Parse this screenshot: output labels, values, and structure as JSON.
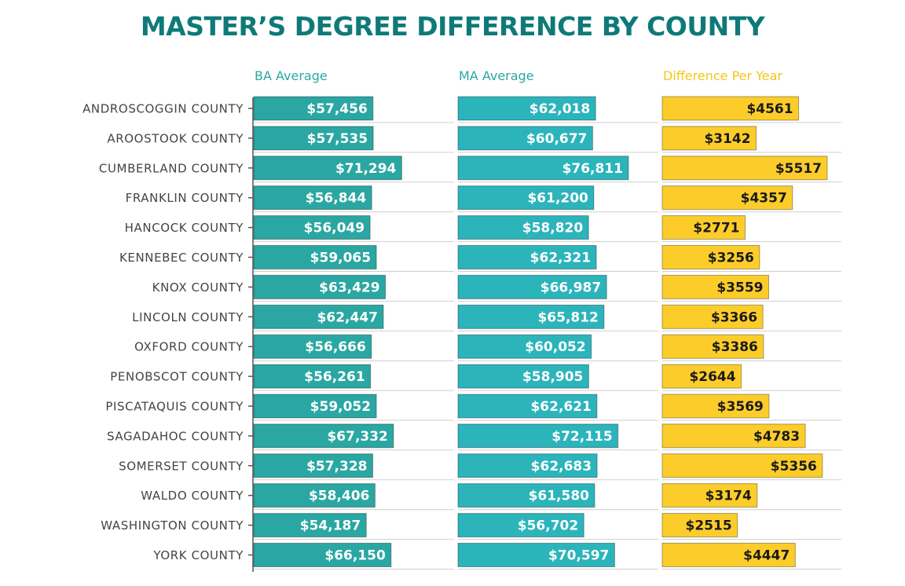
{
  "chart_data": {
    "type": "bar",
    "title": "MASTER’S DEGREE DIFFERENCE BY COUNTY",
    "categories": [
      "ANDROSCOGGIN COUNTY",
      "AROOSTOOK COUNTY",
      "CUMBERLAND COUNTY",
      "FRANKLIN COUNTY",
      "HANCOCK COUNTY",
      "KENNEBEC COUNTY",
      "KNOX COUNTY",
      "LINCOLN COUNTY",
      "OXFORD COUNTY",
      "PENOBSCOT COUNTY",
      "PISCATAQUIS COUNTY",
      "SAGADAHOC COUNTY",
      "SOMERSET COUNTY",
      "WALDO COUNTY",
      "WASHINGTON COUNTY",
      "YORK COUNTY"
    ],
    "series": [
      {
        "name": "BA Average",
        "color": "#2aa7a2",
        "label_color": "#ffffff",
        "values": [
          57456,
          57535,
          71294,
          56844,
          56049,
          59065,
          63429,
          62447,
          56666,
          56261,
          59052,
          67332,
          57328,
          58406,
          54187,
          66150
        ],
        "labels": [
          "$57,456",
          "$57,535",
          "$71,294",
          "$56,844",
          "$56,049",
          "$59,065",
          "$63,429",
          "$62,447",
          "$56,666",
          "$56,261",
          "$59,052",
          "$67,332",
          "$57,328",
          "$58,406",
          "$54,187",
          "$66,150"
        ]
      },
      {
        "name": "MA Average",
        "color": "#2cb4bb",
        "label_color": "#ffffff",
        "values": [
          62018,
          60677,
          76811,
          61200,
          58820,
          62321,
          66987,
          65812,
          60052,
          58905,
          62621,
          72115,
          62683,
          61580,
          56702,
          70597
        ],
        "labels": [
          "$62,018",
          "$60,677",
          "$76,811",
          "$61,200",
          "$58,820",
          "$62,321",
          "$66,987",
          "$65,812",
          "$60,052",
          "$58,905",
          "$62,621",
          "$72,115",
          "$62,683",
          "$61,580",
          "$56,702",
          "$70,597"
        ]
      },
      {
        "name": "Difference Per Year",
        "color": "#fccd2a",
        "label_color": "#1a1a1a",
        "values": [
          4561,
          3142,
          5517,
          4357,
          2771,
          3256,
          3559,
          3366,
          3386,
          2644,
          3569,
          4783,
          5356,
          3174,
          2515,
          4447
        ],
        "labels": [
          "$4561",
          "$3142",
          "$5517",
          "$4357",
          "$2771",
          "$3256",
          "$3559",
          "$3366",
          "$3386",
          "$2644",
          "$3569",
          "$4783",
          "$5356",
          "$3174",
          "$2515",
          "$4447"
        ]
      }
    ],
    "header_colors": [
      "#2aa7a2",
      "#2aa7a2",
      "#f5c518"
    ],
    "title_color": "#0e7a78",
    "grid": false,
    "legend": "none"
  }
}
